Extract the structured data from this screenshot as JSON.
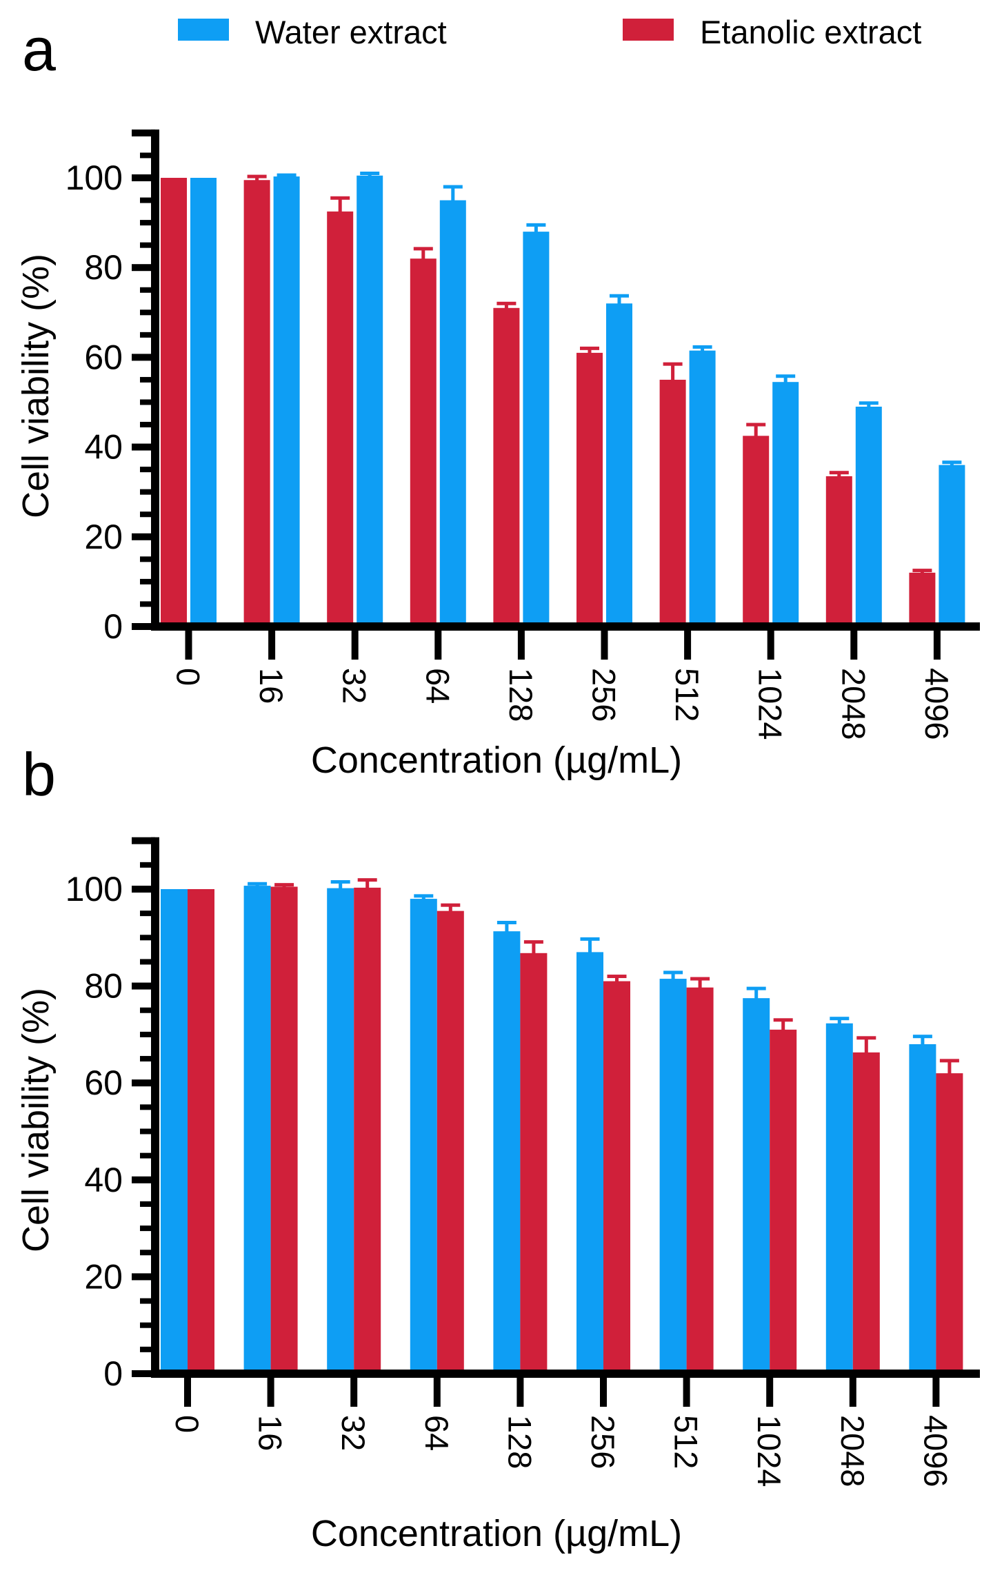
{
  "legend": {
    "items": [
      {
        "label": "Water extract",
        "color": "#0e9ef4"
      },
      {
        "label": "Etanolic extract",
        "color": "#d0203a"
      }
    ]
  },
  "panel_a": {
    "label": "a",
    "xlabel": "Concentration (µg/mL)",
    "ylabel": "Cell viability (%)"
  },
  "panel_b": {
    "label": "b",
    "xlabel": "Concentration (µg/mL)",
    "ylabel": "Cell viability (%)"
  },
  "chart_data": [
    {
      "type": "bar",
      "panel": "a",
      "title": "",
      "xlabel": "Concentration (µg/mL)",
      "ylabel": "Cell viability (%)",
      "categories": [
        "0",
        "16",
        "32",
        "64",
        "128",
        "256",
        "512",
        "1024",
        "2048",
        "4096"
      ],
      "series": [
        {
          "name": "Etanolic extract",
          "color": "#d0203a",
          "values": [
            100,
            99.5,
            92.5,
            82,
            71,
            61,
            55,
            42.5,
            33.5,
            12
          ],
          "errors": [
            0,
            0.8,
            3,
            2.2,
            1,
            1,
            3.5,
            2.5,
            0.8,
            0.5
          ]
        },
        {
          "name": "Water extract",
          "color": "#0e9ef4",
          "values": [
            100,
            100.3,
            100.5,
            95,
            88,
            72,
            61.5,
            54.5,
            49,
            36
          ],
          "errors": [
            0,
            0.3,
            0.5,
            3,
            1.5,
            1.7,
            0.8,
            1.3,
            0.8,
            0.6
          ]
        }
      ],
      "ylim": [
        0,
        110
      ],
      "yticks": [
        0,
        20,
        40,
        60,
        80,
        100
      ],
      "minor_tick_step": 5,
      "grid": false,
      "legend_position": "top"
    },
    {
      "type": "bar",
      "panel": "b",
      "title": "",
      "xlabel": "Concentration (µg/mL)",
      "ylabel": "Cell viability (%)",
      "categories": [
        "0",
        "16",
        "32",
        "64",
        "128",
        "256",
        "512",
        "1024",
        "2048",
        "4096"
      ],
      "series": [
        {
          "name": "Water extract",
          "color": "#0e9ef4",
          "values": [
            100,
            100.7,
            100.2,
            98,
            91.3,
            87,
            81.5,
            77.5,
            72.3,
            68
          ],
          "errors": [
            0,
            0.4,
            1.3,
            0.6,
            1.8,
            2.7,
            1.3,
            2,
            1,
            1.6
          ]
        },
        {
          "name": "Etanolic extract",
          "color": "#d0203a",
          "values": [
            100,
            100.5,
            100.3,
            95.5,
            86.8,
            81,
            79.7,
            71,
            66.3,
            62
          ],
          "errors": [
            0,
            0.4,
            1.6,
            1.2,
            2.3,
            1,
            1.8,
            2,
            3,
            2.6
          ]
        }
      ],
      "ylim": [
        0,
        110
      ],
      "yticks": [
        0,
        20,
        40,
        60,
        80,
        100
      ],
      "minor_tick_step": 5,
      "grid": false,
      "legend_position": "top"
    }
  ]
}
